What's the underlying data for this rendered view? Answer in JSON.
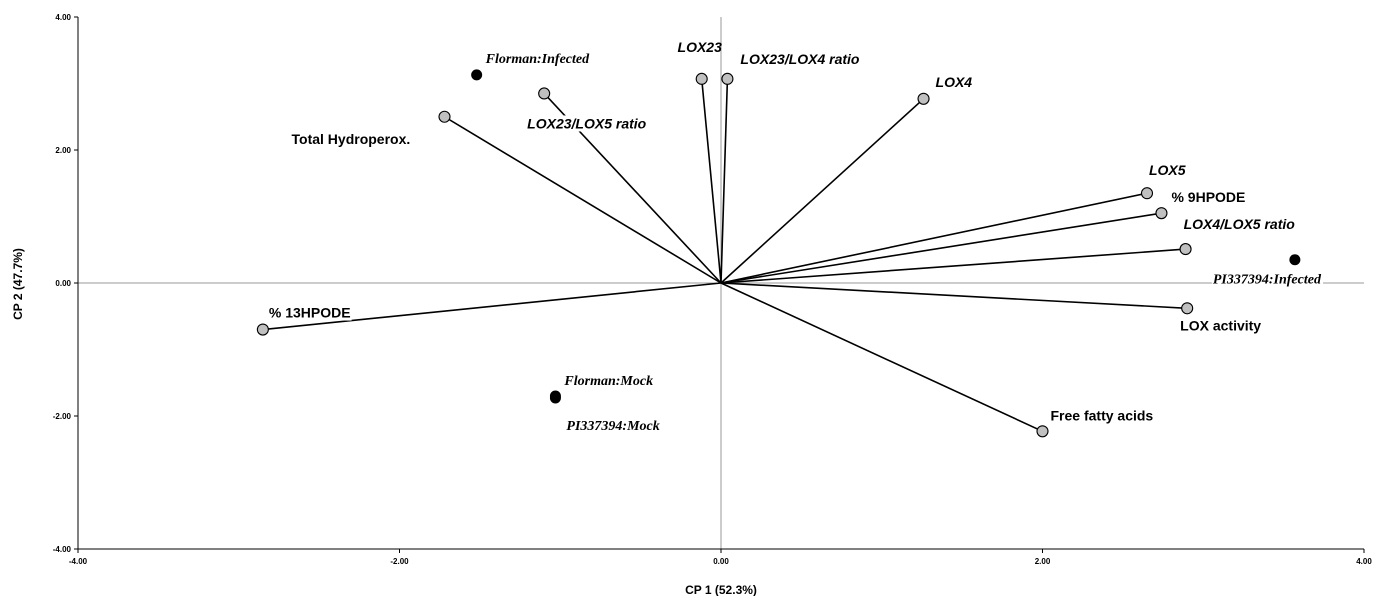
{
  "chart_data": {
    "type": "scatter",
    "subtype": "pca-biplot",
    "title": "",
    "xlabel": "CP 1 (52.3%)",
    "ylabel": "CP 2 (47.7%)",
    "xlim": [
      -4,
      4
    ],
    "ylim": [
      -4,
      4
    ],
    "x_ticks": [
      "-4.00",
      "-2.00",
      "0.00",
      "2.00",
      "4.00"
    ],
    "y_ticks": [
      "4.00",
      "2.00",
      "0.00",
      "-2.00",
      "-4.00"
    ],
    "grid": false,
    "reference_lines": {
      "x": 0,
      "y": 0
    },
    "loadings": [
      {
        "name": "LOX23",
        "x": -0.12,
        "y": 3.07,
        "italic": true
      },
      {
        "name": "LOX23/LOX4 ratio",
        "x": 0.04,
        "y": 3.07,
        "italic": true
      },
      {
        "name": "LOX4",
        "x": 1.26,
        "y": 2.77,
        "italic": true
      },
      {
        "name": "LOX23/LOX5 ratio",
        "x": -1.1,
        "y": 2.85,
        "italic": true
      },
      {
        "name": "Total Hydroperox.",
        "x": -1.72,
        "y": 2.5,
        "italic": false
      },
      {
        "name": "LOX5",
        "x": 2.65,
        "y": 1.35,
        "italic": true
      },
      {
        "name": "% 9HPODE",
        "x": 2.74,
        "y": 1.05,
        "italic": false
      },
      {
        "name": "LOX4/LOX5 ratio",
        "x": 2.89,
        "y": 0.51,
        "italic": true
      },
      {
        "name": "LOX activity",
        "x": 2.9,
        "y": -0.38,
        "italic": false
      },
      {
        "name": "Free fatty acids",
        "x": 2.0,
        "y": -2.23,
        "italic": false
      },
      {
        "name": "% 13HPODE",
        "x": -2.85,
        "y": -0.7,
        "italic": false
      }
    ],
    "scores": [
      {
        "name": "Florman:Infected",
        "x": -1.52,
        "y": 3.13
      },
      {
        "name": "PI337394:Infected",
        "x": 3.57,
        "y": 0.35
      },
      {
        "name": "Florman:Mock",
        "x": -1.03,
        "y": -1.7
      },
      {
        "name": "PI337394:Mock",
        "x": -1.03,
        "y": -1.73
      }
    ],
    "colors": {
      "loading_marker": "#c0c0c0",
      "score_marker": "#000000",
      "axis": "#000000",
      "reference_line": "#999999"
    }
  }
}
